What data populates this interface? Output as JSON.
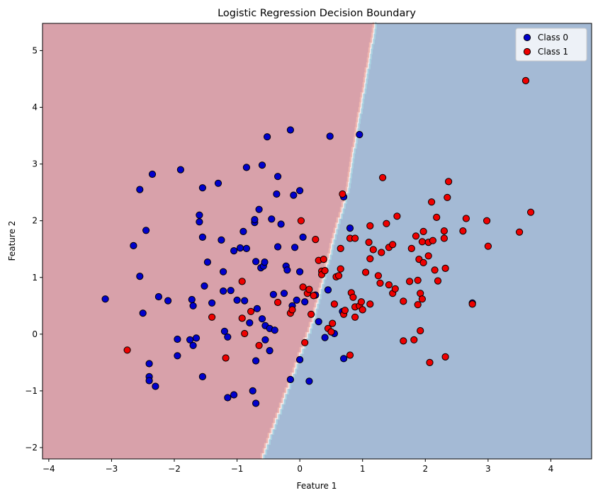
{
  "chart_data": {
    "type": "scatter",
    "title": "Logistic Regression Decision Boundary",
    "xlabel": "Feature 1",
    "ylabel": "Feature 2",
    "xlim": [
      -4.1,
      4.65
    ],
    "ylim": [
      -2.2,
      5.48
    ],
    "xticks": [
      -4,
      -3,
      -2,
      -1,
      0,
      1,
      2,
      3,
      4
    ],
    "xtick_labels": [
      "−4",
      "−3",
      "−2",
      "−1",
      "0",
      "1",
      "2",
      "3",
      "4"
    ],
    "yticks": [
      -2,
      -1,
      0,
      1,
      2,
      3,
      4,
      5
    ],
    "ytick_labels": [
      "−2",
      "−1",
      "0",
      "1",
      "2",
      "3",
      "4",
      "5"
    ],
    "decision_boundary": {
      "description": "P(class 1) = 0.5 contour",
      "points": [
        [
          -0.6,
          -2.2
        ],
        [
          0.2,
          0.2
        ],
        [
          0.5,
          1.5
        ],
        [
          0.75,
          2.5
        ],
        [
          0.9,
          3.55
        ],
        [
          1.2,
          5.48
        ]
      ],
      "left_region_class": "Class 0",
      "right_region_class": "Class 1",
      "left_color": "#d8a1aa",
      "right_color": "#a4bad5",
      "edge_red": "#f0b8b0",
      "edge_blue": "#a8d0e0"
    },
    "legend": {
      "placement": "top-right",
      "entries": [
        {
          "label": "Class 0",
          "color": "#0000cc"
        },
        {
          "label": "Class 1",
          "color": "#ee0000"
        }
      ]
    },
    "series": [
      {
        "name": "Class 0",
        "color": "#0000cc",
        "points": [
          [
            -3.1,
            0.62
          ],
          [
            -2.65,
            1.56
          ],
          [
            -2.55,
            2.55
          ],
          [
            -2.55,
            1.02
          ],
          [
            -2.5,
            0.37
          ],
          [
            -2.45,
            1.83
          ],
          [
            -2.4,
            -0.52
          ],
          [
            -2.4,
            -0.75
          ],
          [
            -2.4,
            -0.82
          ],
          [
            -2.35,
            2.82
          ],
          [
            -2.3,
            -0.92
          ],
          [
            -2.25,
            0.66
          ],
          [
            -2.1,
            0.59
          ],
          [
            -1.95,
            -0.09
          ],
          [
            -1.95,
            -0.38
          ],
          [
            -1.9,
            2.9
          ],
          [
            -1.75,
            -0.1
          ],
          [
            -1.72,
            0.61
          ],
          [
            -1.7,
            0.5
          ],
          [
            -1.7,
            -0.2
          ],
          [
            -1.65,
            -0.07
          ],
          [
            -1.6,
            2.1
          ],
          [
            -1.6,
            1.98
          ],
          [
            -1.55,
            1.71
          ],
          [
            -1.55,
            2.58
          ],
          [
            -1.55,
            -0.75
          ],
          [
            -1.52,
            0.85
          ],
          [
            -1.47,
            1.27
          ],
          [
            -1.4,
            0.55
          ],
          [
            -1.3,
            2.66
          ],
          [
            -1.25,
            1.66
          ],
          [
            -1.22,
            1.1
          ],
          [
            -1.22,
            0.76
          ],
          [
            -1.2,
            0.05
          ],
          [
            -1.15,
            -0.05
          ],
          [
            -1.15,
            -1.12
          ],
          [
            -1.1,
            0.77
          ],
          [
            -1.05,
            1.47
          ],
          [
            -1.05,
            -1.07
          ],
          [
            -1.0,
            0.6
          ],
          [
            -0.95,
            1.52
          ],
          [
            -0.9,
            1.81
          ],
          [
            -0.88,
            0.59
          ],
          [
            -0.85,
            2.94
          ],
          [
            -0.85,
            1.51
          ],
          [
            -0.8,
            0.2
          ],
          [
            -0.75,
            -1.0
          ],
          [
            -0.72,
            1.97
          ],
          [
            -0.72,
            2.02
          ],
          [
            -0.7,
            1.28
          ],
          [
            -0.7,
            -0.47
          ],
          [
            -0.7,
            -1.22
          ],
          [
            -0.68,
            0.45
          ],
          [
            -0.65,
            2.2
          ],
          [
            -0.62,
            1.17
          ],
          [
            -0.6,
            0.27
          ],
          [
            -0.6,
            2.98
          ],
          [
            -0.58,
            1.2
          ],
          [
            -0.56,
            1.27
          ],
          [
            -0.55,
            -0.1
          ],
          [
            -0.55,
            0.15
          ],
          [
            -0.52,
            3.48
          ],
          [
            -0.48,
            -0.29
          ],
          [
            -0.48,
            0.1
          ],
          [
            -0.45,
            2.03
          ],
          [
            -0.42,
            0.7
          ],
          [
            -0.4,
            0.07
          ],
          [
            -0.37,
            2.47
          ],
          [
            -0.35,
            2.78
          ],
          [
            -0.35,
            1.54
          ],
          [
            -0.3,
            1.94
          ],
          [
            -0.25,
            0.72
          ],
          [
            -0.22,
            1.2
          ],
          [
            -0.2,
            1.13
          ],
          [
            -0.15,
            3.6
          ],
          [
            -0.15,
            -0.8
          ],
          [
            -0.12,
            0.5
          ],
          [
            -0.1,
            2.45
          ],
          [
            -0.08,
            1.53
          ],
          [
            -0.05,
            0.6
          ],
          [
            0.0,
            2.53
          ],
          [
            0.0,
            1.1
          ],
          [
            0.0,
            -0.45
          ],
          [
            0.05,
            1.71
          ],
          [
            0.08,
            0.57
          ],
          [
            0.15,
            -0.83
          ],
          [
            0.25,
            0.69
          ],
          [
            0.3,
            0.22
          ],
          [
            0.4,
            -0.06
          ],
          [
            0.45,
            0.78
          ],
          [
            0.48,
            3.49
          ],
          [
            0.55,
            0.01
          ],
          [
            0.68,
            0.4
          ],
          [
            0.7,
            2.42
          ],
          [
            0.7,
            -0.43
          ],
          [
            0.8,
            1.87
          ],
          [
            0.95,
            3.52
          ],
          [
            2.75,
            0.55
          ]
        ]
      },
      {
        "name": "Class 1",
        "color": "#ee0000",
        "points": [
          [
            -2.75,
            -0.28
          ],
          [
            -1.4,
            0.3
          ],
          [
            -1.18,
            -0.42
          ],
          [
            -0.92,
            0.93
          ],
          [
            -0.92,
            0.28
          ],
          [
            -0.88,
            0.01
          ],
          [
            -0.78,
            0.4
          ],
          [
            -0.65,
            -0.2
          ],
          [
            -0.35,
            0.56
          ],
          [
            -0.15,
            0.37
          ],
          [
            -0.12,
            0.43
          ],
          [
            0.02,
            2.0
          ],
          [
            0.05,
            0.83
          ],
          [
            0.08,
            -0.15
          ],
          [
            0.12,
            0.72
          ],
          [
            0.15,
            0.79
          ],
          [
            0.18,
            0.35
          ],
          [
            0.22,
            0.68
          ],
          [
            0.25,
            1.67
          ],
          [
            0.3,
            1.3
          ],
          [
            0.35,
            1.11
          ],
          [
            0.35,
            1.05
          ],
          [
            0.38,
            1.32
          ],
          [
            0.4,
            1.12
          ],
          [
            0.45,
            0.1
          ],
          [
            0.5,
            0.04
          ],
          [
            0.52,
            0.19
          ],
          [
            0.55,
            0.53
          ],
          [
            0.58,
            1.01
          ],
          [
            0.62,
            1.03
          ],
          [
            0.65,
            1.15
          ],
          [
            0.65,
            1.51
          ],
          [
            0.68,
            2.47
          ],
          [
            0.7,
            0.35
          ],
          [
            0.72,
            0.42
          ],
          [
            0.8,
            1.69
          ],
          [
            0.8,
            -0.37
          ],
          [
            0.82,
            0.73
          ],
          [
            0.85,
            0.65
          ],
          [
            0.88,
            1.69
          ],
          [
            0.88,
            0.3
          ],
          [
            0.88,
            0.48
          ],
          [
            0.95,
            0.5
          ],
          [
            0.98,
            0.57
          ],
          [
            1.0,
            0.43
          ],
          [
            1.05,
            1.09
          ],
          [
            1.1,
            1.62
          ],
          [
            1.12,
            1.33
          ],
          [
            1.12,
            1.91
          ],
          [
            1.12,
            0.53
          ],
          [
            1.17,
            1.49
          ],
          [
            1.25,
            1.03
          ],
          [
            1.28,
            0.9
          ],
          [
            1.3,
            1.44
          ],
          [
            1.32,
            2.76
          ],
          [
            1.38,
            1.95
          ],
          [
            1.42,
            1.53
          ],
          [
            1.42,
            0.87
          ],
          [
            1.48,
            1.58
          ],
          [
            1.48,
            0.72
          ],
          [
            1.52,
            0.8
          ],
          [
            1.55,
            2.08
          ],
          [
            1.65,
            0.58
          ],
          [
            1.65,
            -0.12
          ],
          [
            1.75,
            0.93
          ],
          [
            1.78,
            1.51
          ],
          [
            1.82,
            -0.1
          ],
          [
            1.85,
            1.73
          ],
          [
            1.88,
            0.95
          ],
          [
            1.88,
            0.52
          ],
          [
            1.9,
            1.32
          ],
          [
            1.92,
            0.06
          ],
          [
            1.92,
            0.72
          ],
          [
            1.95,
            1.63
          ],
          [
            1.95,
            0.62
          ],
          [
            1.97,
            1.26
          ],
          [
            1.97,
            1.81
          ],
          [
            2.05,
            1.38
          ],
          [
            2.05,
            1.62
          ],
          [
            2.07,
            -0.5
          ],
          [
            2.1,
            2.33
          ],
          [
            2.12,
            1.65
          ],
          [
            2.15,
            1.13
          ],
          [
            2.18,
            2.06
          ],
          [
            2.2,
            0.94
          ],
          [
            2.3,
            1.82
          ],
          [
            2.3,
            1.69
          ],
          [
            2.32,
            1.16
          ],
          [
            2.32,
            -0.4
          ],
          [
            2.35,
            2.41
          ],
          [
            2.37,
            2.69
          ],
          [
            2.6,
            1.82
          ],
          [
            2.65,
            2.04
          ],
          [
            2.75,
            0.53
          ],
          [
            2.98,
            2.0
          ],
          [
            3.0,
            1.55
          ],
          [
            3.5,
            1.8
          ],
          [
            3.6,
            4.47
          ],
          [
            3.68,
            2.15
          ]
        ]
      }
    ]
  }
}
